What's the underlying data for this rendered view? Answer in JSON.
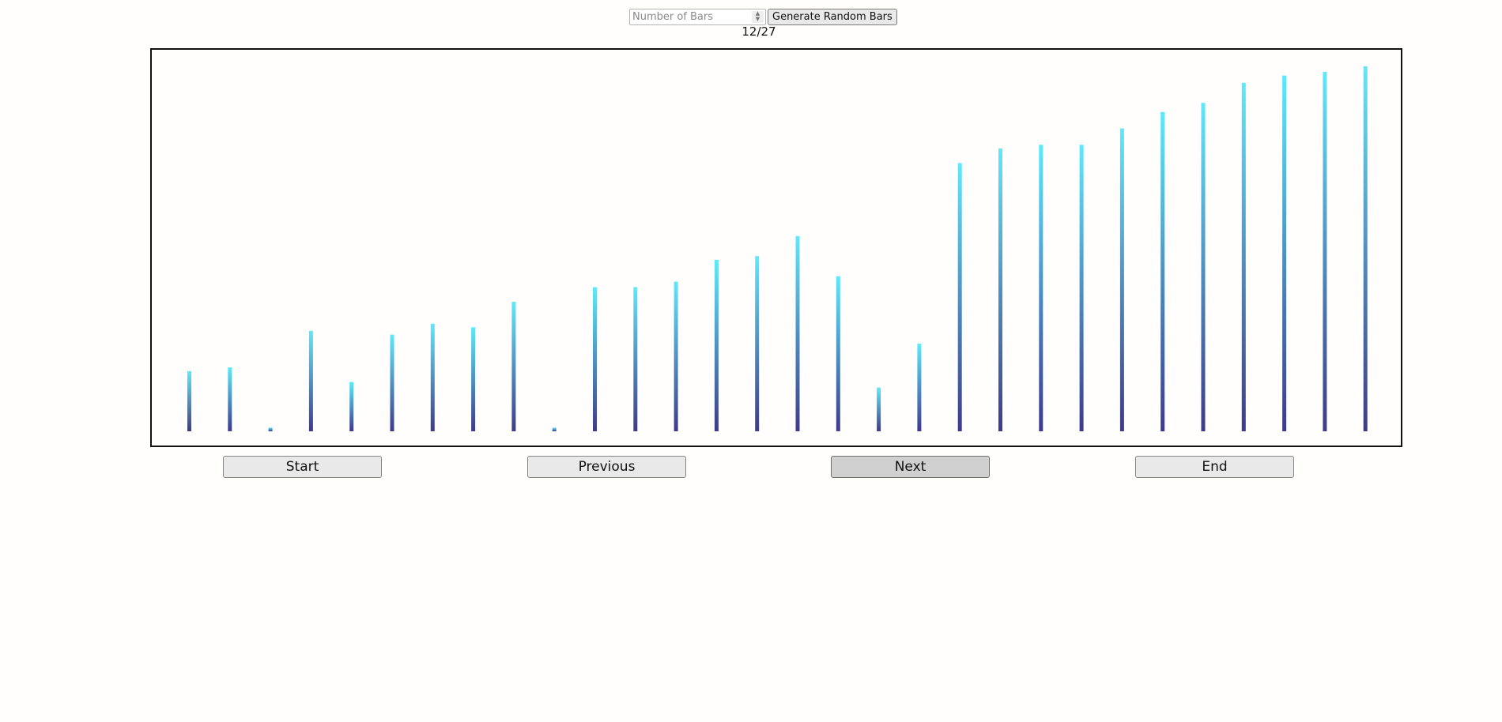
{
  "controls": {
    "bar_count_placeholder": "Number of Bars",
    "bar_count_value": "",
    "generate_label": "Generate Random Bars"
  },
  "progress": {
    "label": "12/27",
    "current_step": 12,
    "total_steps": 27
  },
  "navigation": {
    "start_label": "Start",
    "previous_label": "Previous",
    "next_label": "Next",
    "end_label": "End"
  },
  "colors": {
    "bar_top": "#5fe9fb",
    "bar_bottom": "#3d3a8c",
    "frame": "#111111",
    "hover_button": "#d0d0d0"
  },
  "chart_data": {
    "type": "bar",
    "value_max": 100,
    "values": [
      16.5,
      17.5,
      1,
      27.5,
      13.5,
      26.5,
      29.5,
      28.5,
      35.5,
      1,
      39.5,
      39.5,
      41,
      47,
      48,
      53.5,
      42.5,
      12,
      24,
      73.5,
      77.5,
      78.5,
      78.5,
      83,
      87.5,
      90,
      95.5,
      97.5,
      98.5,
      100
    ]
  }
}
